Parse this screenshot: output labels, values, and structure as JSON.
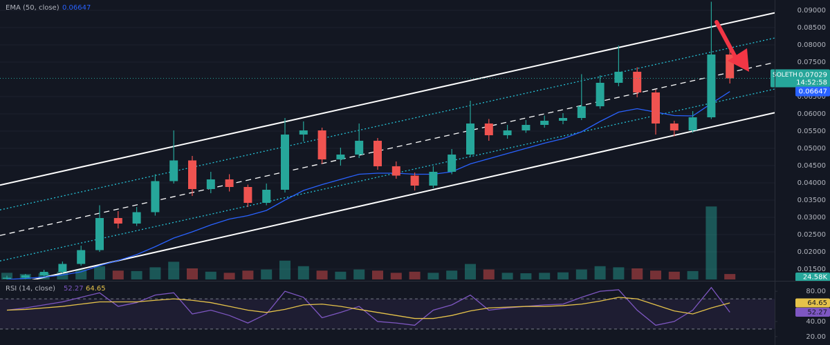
{
  "chart_data": [
    {
      "type": "candlestick",
      "symbol": "SOLETH",
      "countdown": "14:52:58",
      "up_color": "#26a69a",
      "down_color": "#ef5350",
      "candles": {
        "open": [
          0.0122,
          0.0125,
          0.0132,
          0.0142,
          0.0165,
          0.0205,
          0.0298,
          0.0282,
          0.0315,
          0.0405,
          0.0465,
          0.0382,
          0.041,
          0.0388,
          0.0342,
          0.038,
          0.054,
          0.0552,
          0.0468,
          0.0482,
          0.0522,
          0.0448,
          0.0421,
          0.0392,
          0.0432,
          0.0482,
          0.0572,
          0.0538,
          0.0552,
          0.0568,
          0.058,
          0.0588,
          0.0622,
          0.069,
          0.0722,
          0.0662,
          0.0572,
          0.0552,
          0.059,
          0.0772
        ],
        "high": [
          0.0131,
          0.0136,
          0.0148,
          0.0172,
          0.0218,
          0.0335,
          0.0318,
          0.033,
          0.0425,
          0.0552,
          0.0478,
          0.0432,
          0.0425,
          0.0395,
          0.0398,
          0.0588,
          0.0578,
          0.056,
          0.0502,
          0.0572,
          0.053,
          0.0462,
          0.043,
          0.0448,
          0.0498,
          0.0638,
          0.0585,
          0.0568,
          0.0582,
          0.0595,
          0.0602,
          0.0715,
          0.0712,
          0.0798,
          0.0735,
          0.067,
          0.058,
          0.0608,
          0.0925,
          0.079
        ],
        "low": [
          0.0119,
          0.0121,
          0.0128,
          0.0138,
          0.016,
          0.02,
          0.0268,
          0.0275,
          0.0305,
          0.0398,
          0.0362,
          0.037,
          0.0375,
          0.033,
          0.0335,
          0.0372,
          0.052,
          0.0455,
          0.045,
          0.0472,
          0.0438,
          0.0412,
          0.0378,
          0.0385,
          0.0425,
          0.0475,
          0.0522,
          0.0528,
          0.0545,
          0.056,
          0.057,
          0.0582,
          0.0615,
          0.068,
          0.0648,
          0.054,
          0.0535,
          0.0545,
          0.0585,
          0.0688
        ],
        "close": [
          0.0125,
          0.0132,
          0.0142,
          0.0165,
          0.0205,
          0.0298,
          0.0282,
          0.0315,
          0.0405,
          0.0465,
          0.0382,
          0.041,
          0.0388,
          0.0342,
          0.038,
          0.054,
          0.0552,
          0.0468,
          0.0482,
          0.0522,
          0.0448,
          0.0421,
          0.0392,
          0.0432,
          0.0482,
          0.0572,
          0.0538,
          0.0552,
          0.0568,
          0.058,
          0.0588,
          0.0622,
          0.069,
          0.0722,
          0.0662,
          0.0572,
          0.0552,
          0.059,
          0.0772,
          0.07029
        ]
      },
      "ema": {
        "name": "EMA (50, close)",
        "color": "#2962ff",
        "values": [
          0.012,
          0.0123,
          0.0127,
          0.0133,
          0.0142,
          0.016,
          0.0175,
          0.0192,
          0.0215,
          0.024,
          0.0258,
          0.0278,
          0.0295,
          0.0305,
          0.032,
          0.035,
          0.0378,
          0.0395,
          0.041,
          0.0425,
          0.0428,
          0.0428,
          0.0425,
          0.0425,
          0.0432,
          0.0455,
          0.047,
          0.0485,
          0.05,
          0.0515,
          0.0528,
          0.0548,
          0.0578,
          0.0605,
          0.0615,
          0.0605,
          0.0595,
          0.0594,
          0.063,
          0.06647
        ]
      },
      "volume": {
        "values": [
          30000,
          25000,
          28000,
          35000,
          45000,
          60000,
          40000,
          38000,
          55000,
          80000,
          50000,
          35000,
          30000,
          40000,
          45000,
          85000,
          60000,
          40000,
          35000,
          45000,
          40000,
          30000,
          35000,
          30000,
          40000,
          70000,
          45000,
          30000,
          28000,
          30000,
          32000,
          45000,
          60000,
          55000,
          50000,
          40000,
          35000,
          38000,
          330000,
          24580
        ],
        "value_label": "24.58K",
        "ylim": [
          0,
          390000
        ]
      },
      "channel": [
        {
          "values": [
            0.0398,
            0.0864
          ],
          "style": "solid",
          "color": "#ffffff"
        },
        {
          "values": [
            0.0326,
            0.0791
          ],
          "style": "dotted",
          "color": "#26c6da"
        },
        {
          "values": [
            0.0252,
            0.072
          ],
          "style": "dashed",
          "color": "#ffffff"
        },
        {
          "values": [
            0.0178,
            0.0643
          ],
          "style": "dotted",
          "color": "#26c6da"
        },
        {
          "values": [
            0.0102,
            0.0574
          ],
          "style": "solid",
          "color": "#ffffff"
        }
      ],
      "ylim": [
        0.012,
        0.093
      ],
      "yticks": [
        {
          "value": 0.015,
          "label": "0.01500"
        },
        {
          "value": 0.02,
          "label": "0.02000"
        },
        {
          "value": 0.025,
          "label": "0.02500"
        },
        {
          "value": 0.03,
          "label": "0.03000"
        },
        {
          "value": 0.035,
          "label": "0.03500"
        },
        {
          "value": 0.04,
          "label": "0.04000"
        },
        {
          "value": 0.045,
          "label": "0.04500"
        },
        {
          "value": 0.05,
          "label": "0.05000"
        },
        {
          "value": 0.055,
          "label": "0.05500"
        },
        {
          "value": 0.06,
          "label": "0.06000"
        },
        {
          "value": 0.065,
          "label": "0.06500"
        },
        {
          "value": 0.075,
          "label": "0.07500"
        },
        {
          "value": 0.08,
          "label": "0.08000"
        },
        {
          "value": 0.085,
          "label": "0.08500"
        },
        {
          "value": 0.09,
          "label": "0.09000"
        }
      ],
      "grid": true
    },
    {
      "type": "rsi",
      "title": "RSI (14, close)",
      "series": [
        {
          "color": "#7e57c2",
          "values": [
            55,
            58,
            62,
            66,
            72,
            78,
            60,
            65,
            75,
            78,
            50,
            55,
            48,
            38,
            50,
            80,
            72,
            45,
            52,
            60,
            40,
            38,
            35,
            55,
            62,
            75,
            55,
            58,
            60,
            62,
            63,
            72,
            80,
            82,
            55,
            35,
            40,
            55,
            85,
            52.27
          ]
        },
        {
          "color": "#e6c34a",
          "values": [
            55,
            56,
            58,
            60,
            63,
            66,
            66,
            66,
            68,
            70,
            68,
            65,
            60,
            55,
            52,
            56,
            62,
            63,
            60,
            56,
            52,
            48,
            44,
            44,
            48,
            54,
            58,
            59,
            60,
            60,
            61,
            63,
            67,
            72,
            70,
            62,
            54,
            50,
            58,
            64.65
          ]
        }
      ],
      "bands": [
        70,
        30
      ],
      "ylim": [
        8.9,
        92
      ],
      "yticks": [
        {
          "value": 20,
          "label": "20.00"
        },
        {
          "value": 40,
          "label": "40.00"
        },
        {
          "value": 80,
          "label": "80.00"
        }
      ]
    }
  ]
}
